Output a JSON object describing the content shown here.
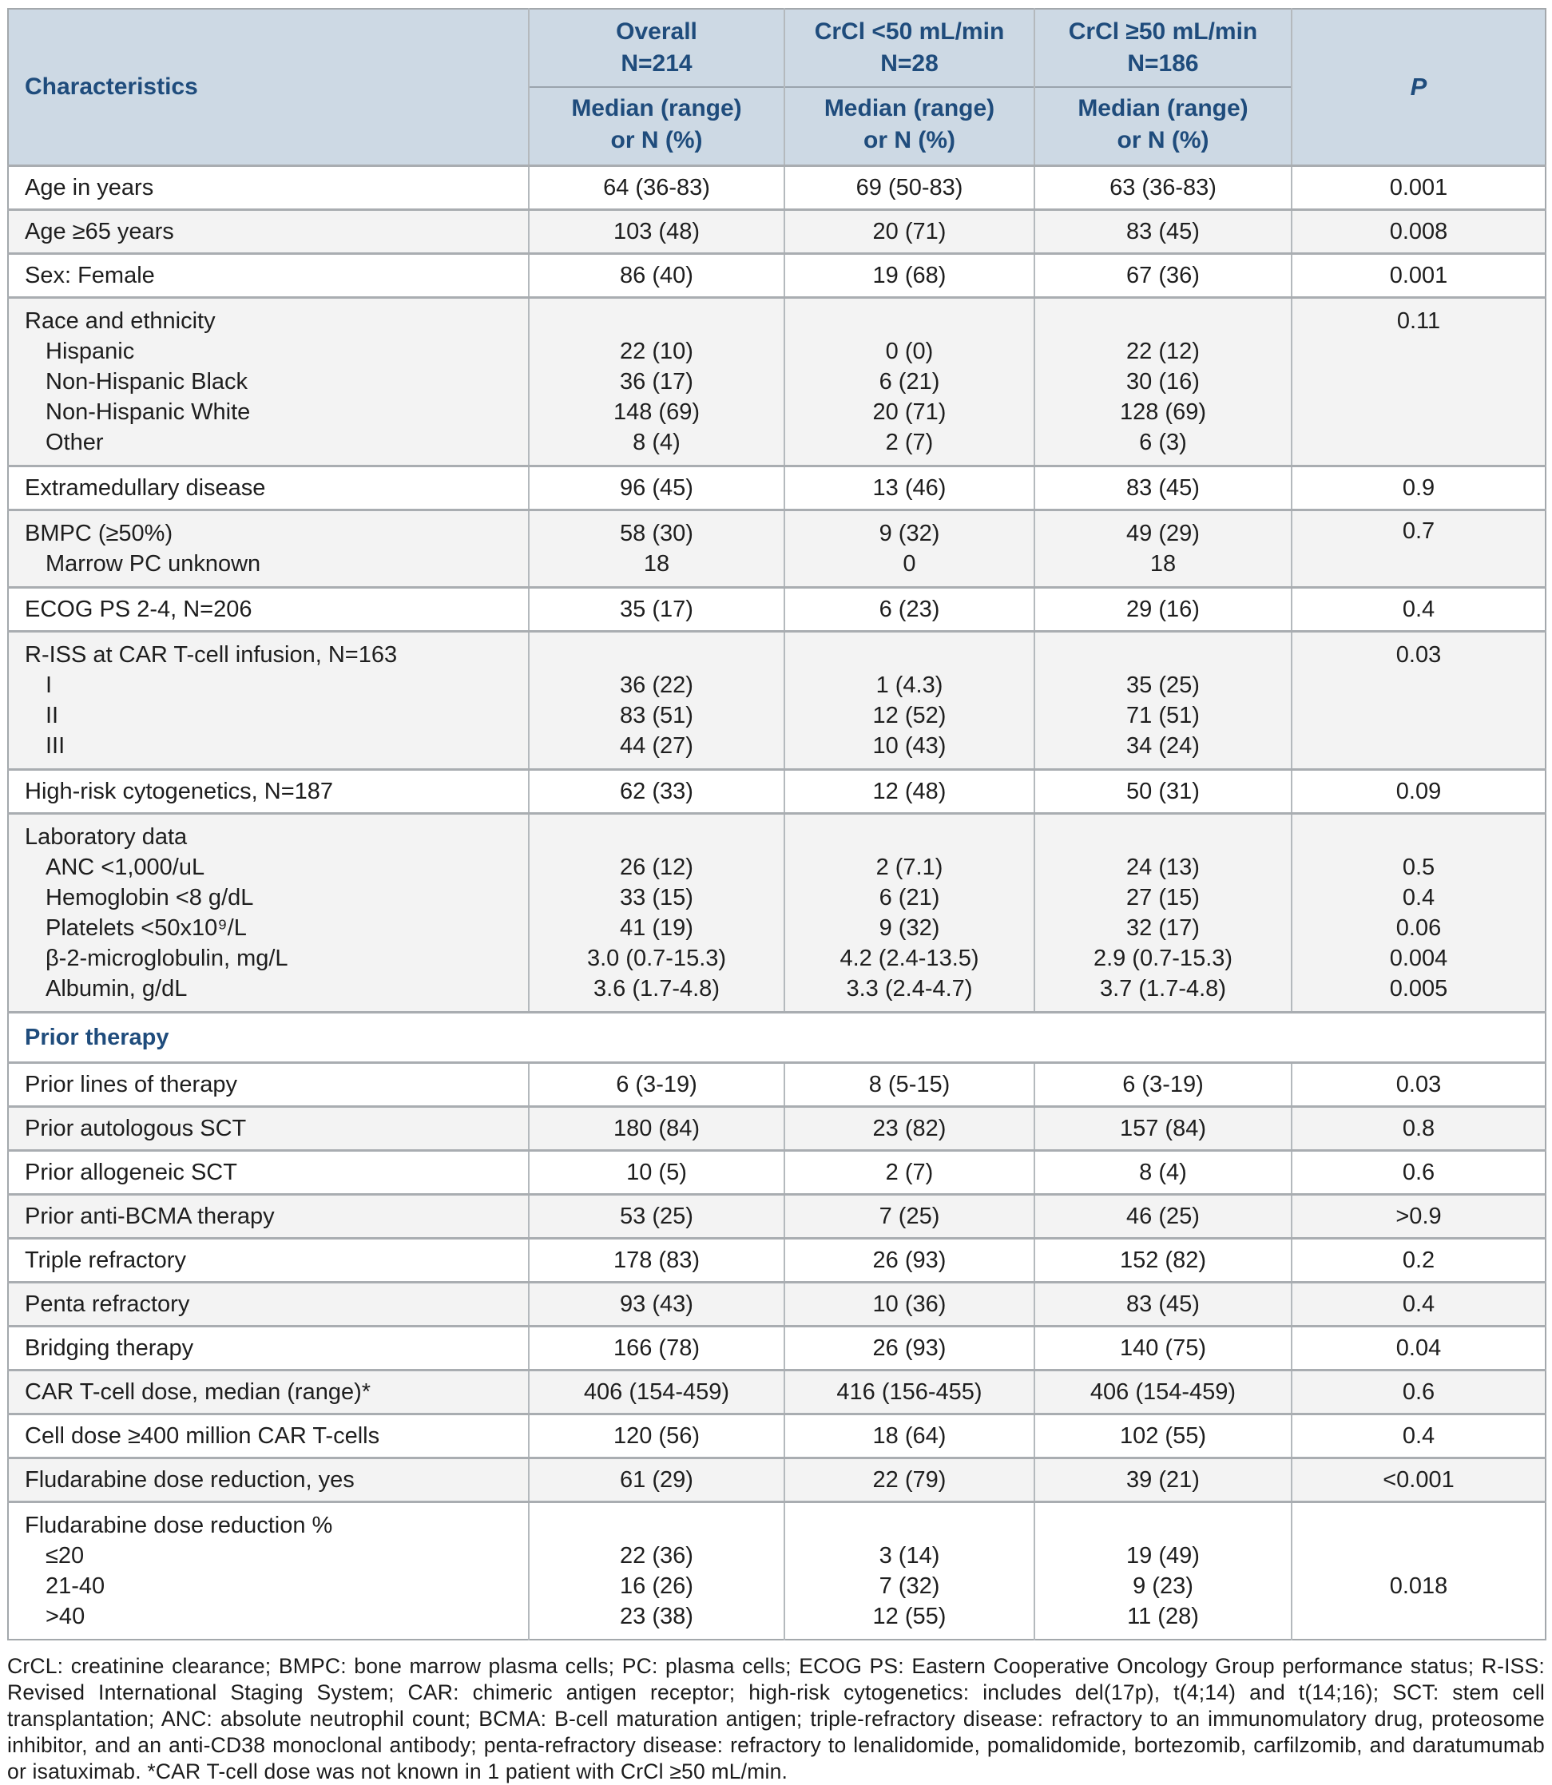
{
  "colors": {
    "navy": "#1f4c7c",
    "header_bg": "#cdd9e4",
    "row_stripe": "#f3f3f3",
    "h_border": "#a9adb1",
    "v_border": "#b4b9bd",
    "outer_border": "#a3a8ac",
    "text": "#1e1e1e"
  },
  "table": {
    "header": {
      "characteristics": "Characteristics",
      "p_label": "P",
      "columns": [
        {
          "line1": "Overall",
          "line2": "N=214"
        },
        {
          "line1": "CrCl <50 mL/min",
          "line2": "N=28"
        },
        {
          "line1": "CrCl ≥50 mL/min",
          "line2": "N=186"
        }
      ],
      "sub_line1": "Median (range)",
      "sub_line2": "or N (%)"
    },
    "rows": [
      {
        "type": "simple",
        "shaded": false,
        "label": "Age in years",
        "overall": "64 (36-83)",
        "crcl_lt50": "69 (50-83)",
        "crcl_ge50": "63 (36-83)",
        "p": "0.001"
      },
      {
        "type": "simple",
        "shaded": true,
        "label": "Age ≥65 years",
        "overall": "103 (48)",
        "crcl_lt50": "20 (71)",
        "crcl_ge50": "83 (45)",
        "p": "0.008"
      },
      {
        "type": "simple",
        "shaded": false,
        "label": "Sex: Female",
        "overall": "86 (40)",
        "crcl_lt50": "19 (68)",
        "crcl_ge50": "67 (36)",
        "p": "0.001"
      },
      {
        "type": "group",
        "shaded": true,
        "lines": [
          {
            "label": "Race and ethnicity",
            "indent": false,
            "overall": "",
            "crcl_lt50": "",
            "crcl_ge50": "",
            "p": "0.11"
          },
          {
            "label": "Hispanic",
            "indent": true,
            "overall": "22 (10)",
            "crcl_lt50": "0 (0)",
            "crcl_ge50": "22 (12)",
            "p": ""
          },
          {
            "label": "Non-Hispanic Black",
            "indent": true,
            "overall": "36 (17)",
            "crcl_lt50": "6 (21)",
            "crcl_ge50": "30 (16)",
            "p": ""
          },
          {
            "label": "Non-Hispanic White",
            "indent": true,
            "overall": "148 (69)",
            "crcl_lt50": "20 (71)",
            "crcl_ge50": "128 (69)",
            "p": ""
          },
          {
            "label": "Other",
            "indent": true,
            "overall": "8 (4)",
            "crcl_lt50": "2 (7)",
            "crcl_ge50": "6 (3)",
            "p": ""
          }
        ]
      },
      {
        "type": "simple",
        "shaded": false,
        "label": "Extramedullary disease",
        "overall": "96 (45)",
        "crcl_lt50": "13 (46)",
        "crcl_ge50": "83 (45)",
        "p": "0.9"
      },
      {
        "type": "group",
        "shaded": true,
        "p_middle": "0.7",
        "lines": [
          {
            "label": "BMPC (≥50%)",
            "indent": false,
            "overall": "58 (30)",
            "crcl_lt50": "9 (32)",
            "crcl_ge50": "49 (29)",
            "p": ""
          },
          {
            "label": "Marrow PC unknown",
            "indent": true,
            "overall": "18",
            "crcl_lt50": "0",
            "crcl_ge50": "18",
            "p": ""
          }
        ]
      },
      {
        "type": "simple",
        "shaded": false,
        "label": "ECOG PS 2-4, N=206",
        "overall": "35 (17)",
        "crcl_lt50": "6 (23)",
        "crcl_ge50": "29 (16)",
        "p": "0.4"
      },
      {
        "type": "group",
        "shaded": true,
        "lines": [
          {
            "label": "R-ISS at CAR T-cell infusion, N=163",
            "indent": false,
            "overall": "",
            "crcl_lt50": "",
            "crcl_ge50": "",
            "p": "0.03"
          },
          {
            "label": "I",
            "indent": true,
            "overall": "36 (22)",
            "crcl_lt50": "1 (4.3)",
            "crcl_ge50": "35 (25)",
            "p": ""
          },
          {
            "label": "II",
            "indent": true,
            "overall": "83 (51)",
            "crcl_lt50": "12 (52)",
            "crcl_ge50": "71 (51)",
            "p": ""
          },
          {
            "label": "III",
            "indent": true,
            "overall": "44 (27)",
            "crcl_lt50": "10 (43)",
            "crcl_ge50": "34 (24)",
            "p": ""
          }
        ]
      },
      {
        "type": "simple",
        "shaded": false,
        "label": "High-risk cytogenetics, N=187",
        "overall": "62 (33)",
        "crcl_lt50": "12 (48)",
        "crcl_ge50": "50 (31)",
        "p": "0.09"
      },
      {
        "type": "group",
        "shaded": true,
        "lines": [
          {
            "label": "Laboratory data",
            "indent": false,
            "overall": "",
            "crcl_lt50": "",
            "crcl_ge50": "",
            "p": ""
          },
          {
            "label": "ANC <1,000/uL",
            "indent": true,
            "overall": "26 (12)",
            "crcl_lt50": "2 (7.1)",
            "crcl_ge50": "24 (13)",
            "p": "0.5"
          },
          {
            "label": "Hemoglobin <8 g/dL",
            "indent": true,
            "overall": "33 (15)",
            "crcl_lt50": "6 (21)",
            "crcl_ge50": "27 (15)",
            "p": "0.4"
          },
          {
            "label": "Platelets <50x10⁹/L",
            "indent": true,
            "overall": "41 (19)",
            "crcl_lt50": "9 (32)",
            "crcl_ge50": "32 (17)",
            "p": "0.06"
          },
          {
            "label": "β-2-microglobulin, mg/L",
            "indent": true,
            "overall": "3.0 (0.7-15.3)",
            "crcl_lt50": "4.2 (2.4-13.5)",
            "crcl_ge50": "2.9 (0.7-15.3)",
            "p": "0.004"
          },
          {
            "label": "Albumin, g/dL",
            "indent": true,
            "overall": "3.6 (1.7-4.8)",
            "crcl_lt50": "3.3 (2.4-4.7)",
            "crcl_ge50": "3.7 (1.7-4.8)",
            "p": "0.005"
          }
        ]
      },
      {
        "type": "section",
        "label": "Prior therapy"
      },
      {
        "type": "simple",
        "shaded": false,
        "label": "Prior lines of therapy",
        "overall": "6 (3-19)",
        "crcl_lt50": "8 (5-15)",
        "crcl_ge50": "6 (3-19)",
        "p": "0.03"
      },
      {
        "type": "simple",
        "shaded": true,
        "label": "Prior autologous SCT",
        "overall": "180 (84)",
        "crcl_lt50": "23 (82)",
        "crcl_ge50": "157 (84)",
        "p": "0.8"
      },
      {
        "type": "simple",
        "shaded": false,
        "label": "Prior allogeneic SCT",
        "overall": "10 (5)",
        "crcl_lt50": "2 (7)",
        "crcl_ge50": "8 (4)",
        "p": "0.6"
      },
      {
        "type": "simple",
        "shaded": true,
        "label": "Prior anti-BCMA therapy",
        "overall": "53 (25)",
        "crcl_lt50": "7 (25)",
        "crcl_ge50": "46 (25)",
        "p": ">0.9"
      },
      {
        "type": "simple",
        "shaded": false,
        "label": "Triple refractory",
        "overall": "178 (83)",
        "crcl_lt50": "26 (93)",
        "crcl_ge50": "152 (82)",
        "p": "0.2"
      },
      {
        "type": "simple",
        "shaded": true,
        "label": "Penta refractory",
        "overall": "93 (43)",
        "crcl_lt50": "10 (36)",
        "crcl_ge50": "83 (45)",
        "p": "0.4"
      },
      {
        "type": "simple",
        "shaded": false,
        "label": "Bridging therapy",
        "overall": "166 (78)",
        "crcl_lt50": "26 (93)",
        "crcl_ge50": "140 (75)",
        "p": "0.04"
      },
      {
        "type": "simple",
        "shaded": true,
        "label": "CAR T-cell dose, median (range)*",
        "overall": "406 (154-459)",
        "crcl_lt50": "416 (156-455)",
        "crcl_ge50": "406 (154-459)",
        "p": "0.6"
      },
      {
        "type": "simple",
        "shaded": false,
        "label": "Cell dose ≥400 million CAR T-cells",
        "overall": "120 (56)",
        "crcl_lt50": "18 (64)",
        "crcl_ge50": "102 (55)",
        "p": "0.4"
      },
      {
        "type": "simple",
        "shaded": true,
        "label": "Fludarabine dose reduction, yes",
        "overall": "61 (29)",
        "crcl_lt50": "22 (79)",
        "crcl_ge50": "39 (21)",
        "p": "<0.001"
      },
      {
        "type": "group",
        "shaded": false,
        "lines": [
          {
            "label": "Fludarabine dose reduction %",
            "indent": false,
            "overall": "",
            "crcl_lt50": "",
            "crcl_ge50": "",
            "p": ""
          },
          {
            "label": "≤20",
            "indent": true,
            "overall": "22 (36)",
            "crcl_lt50": "3 (14)",
            "crcl_ge50": "19 (49)",
            "p": ""
          },
          {
            "label": "21-40",
            "indent": true,
            "overall": "16 (26)",
            "crcl_lt50": "7 (32)",
            "crcl_ge50": "9 (23)",
            "p": "0.018"
          },
          {
            "label": ">40",
            "indent": true,
            "overall": "23 (38)",
            "crcl_lt50": "12 (55)",
            "crcl_ge50": "11 (28)",
            "p": ""
          }
        ]
      }
    ]
  },
  "footnote": "CrCL: creatinine clearance; BMPC: bone marrow plasma cells; PC: plasma cells; ECOG PS: Eastern Cooperative Oncology Group performance status; R-ISS: Revised International Staging System; CAR: chimeric antigen receptor; high-risk cytogenetics: includes del(17p), t(4;14) and t(14;16); SCT: stem cell transplantation; ANC: absolute neutrophil count; BCMA: B-cell maturation antigen; triple-refractory disease: refractory to an immunomulatory drug, proteosome inhibitor, and an anti-CD38 monoclonal antibody; penta-refractory disease: refractory to lenalidomide, pomalidomide, bortezomib, carfilzomib, and daratumumab or isatuximab. *CAR T-cell dose was not known in 1 patient with CrCl ≥50 mL/min."
}
